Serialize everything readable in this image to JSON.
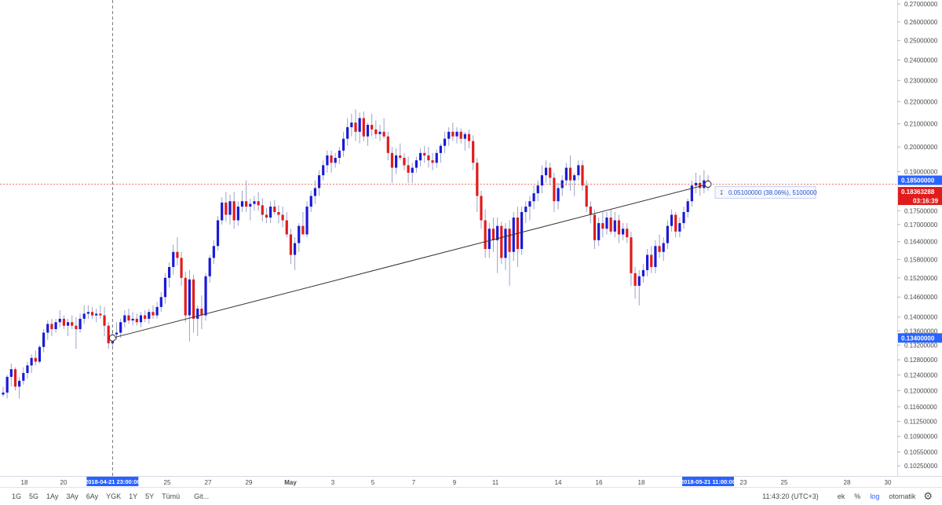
{
  "chart_data": {
    "type": "candlestick",
    "ylim": [
      0.1025,
      0.27
    ],
    "y_scale": "log",
    "y_ticks": [
      "0.27000000",
      "0.26000000",
      "0.25000000",
      "0.24000000",
      "0.23000000",
      "0.22000000",
      "0.21000000",
      "0.20000000",
      "0.19000000",
      "0.17500000",
      "0.17000000",
      "0.16400000",
      "0.15800000",
      "0.15200000",
      "0.14600000",
      "0.14000000",
      "0.13600000",
      "0.13200000",
      "0.12800000",
      "0.12400000",
      "0.12000000",
      "0.11600000",
      "0.11250000",
      "0.10900000",
      "0.10550000",
      "0.10250000"
    ],
    "x_ticks": [
      "18",
      "20",
      "25",
      "27",
      "29",
      "May",
      "3",
      "5",
      "7",
      "9",
      "11",
      "14",
      "16",
      "18",
      "23",
      "25",
      "28",
      "30"
    ],
    "up_color": "#1a1ad6",
    "down_color": "#e01b1b",
    "wick_color": "#9aa3c9",
    "price_line": {
      "value": 0.185,
      "label": "0.18500000",
      "color": "#e74c3c"
    },
    "last_price": {
      "value": 0.18363288,
      "label": "0.18363288",
      "countdown": "03:16:39",
      "color": "#e01b1b"
    },
    "crosshair_price": {
      "value": 0.134,
      "label": "0.13400000"
    },
    "crosshair_time_label": "2018-04-21 23:00:00",
    "trend_line": {
      "from": {
        "time": "2018-04-21 23:00:00",
        "price": 0.134
      },
      "to": {
        "time": "2018-05-21 11:00:00",
        "price": 0.185
      }
    },
    "measure_label": "0.05100000 (38.06%), 5100000",
    "time_label_right": "2018-05-21 11:00:00",
    "candles": [
      [
        0.119,
        0.121,
        0.1185,
        0.1195
      ],
      [
        0.1195,
        0.124,
        0.118,
        0.1235
      ],
      [
        0.1235,
        0.127,
        0.121,
        0.1255
      ],
      [
        0.1255,
        0.126,
        0.12,
        0.121
      ],
      [
        0.121,
        0.1235,
        0.118,
        0.1225
      ],
      [
        0.1225,
        0.126,
        0.1215,
        0.1245
      ],
      [
        0.1245,
        0.1275,
        0.123,
        0.1265
      ],
      [
        0.1265,
        0.1295,
        0.1245,
        0.1285
      ],
      [
        0.1285,
        0.1305,
        0.1265,
        0.1275
      ],
      [
        0.1275,
        0.132,
        0.127,
        0.1315
      ],
      [
        0.1315,
        0.1365,
        0.13,
        0.1355
      ],
      [
        0.1355,
        0.139,
        0.1335,
        0.138
      ],
      [
        0.138,
        0.1395,
        0.1345,
        0.1365
      ],
      [
        0.1365,
        0.1395,
        0.1355,
        0.1385
      ],
      [
        0.1385,
        0.142,
        0.137,
        0.1395
      ],
      [
        0.1395,
        0.1405,
        0.1365,
        0.1375
      ],
      [
        0.1375,
        0.1395,
        0.1345,
        0.1385
      ],
      [
        0.1385,
        0.1405,
        0.1365,
        0.1375
      ],
      [
        0.1375,
        0.14,
        0.131,
        0.1365
      ],
      [
        0.1365,
        0.141,
        0.1355,
        0.1395
      ],
      [
        0.1395,
        0.1435,
        0.138,
        0.141
      ],
      [
        0.141,
        0.1435,
        0.1395,
        0.1415
      ],
      [
        0.1415,
        0.143,
        0.1395,
        0.1405
      ],
      [
        0.1405,
        0.1425,
        0.1385,
        0.141
      ],
      [
        0.141,
        0.1435,
        0.1395,
        0.1405
      ],
      [
        0.1405,
        0.143,
        0.1345,
        0.1375
      ],
      [
        0.1375,
        0.1385,
        0.131,
        0.1325
      ],
      [
        0.1325,
        0.136,
        0.1315,
        0.135
      ],
      [
        0.135,
        0.1385,
        0.1335,
        0.1355
      ],
      [
        0.1355,
        0.1395,
        0.134,
        0.1385
      ],
      [
        0.1385,
        0.142,
        0.137,
        0.1405
      ],
      [
        0.1405,
        0.1425,
        0.138,
        0.139
      ],
      [
        0.139,
        0.1415,
        0.1375,
        0.1395
      ],
      [
        0.1395,
        0.141,
        0.1375,
        0.1385
      ],
      [
        0.1385,
        0.1415,
        0.137,
        0.1405
      ],
      [
        0.1405,
        0.142,
        0.1385,
        0.1395
      ],
      [
        0.1395,
        0.1425,
        0.138,
        0.1415
      ],
      [
        0.1415,
        0.1435,
        0.1395,
        0.1405
      ],
      [
        0.1405,
        0.1445,
        0.1395,
        0.143
      ],
      [
        0.143,
        0.1475,
        0.1415,
        0.146
      ],
      [
        0.146,
        0.1535,
        0.144,
        0.152
      ],
      [
        0.152,
        0.157,
        0.149,
        0.1555
      ],
      [
        0.1555,
        0.163,
        0.153,
        0.1605
      ],
      [
        0.1605,
        0.1655,
        0.156,
        0.1585
      ],
      [
        0.1585,
        0.1605,
        0.1495,
        0.152
      ],
      [
        0.152,
        0.154,
        0.1385,
        0.1405
      ],
      [
        0.1405,
        0.1545,
        0.133,
        0.1515
      ],
      [
        0.1515,
        0.153,
        0.1355,
        0.1395
      ],
      [
        0.1395,
        0.1435,
        0.1345,
        0.1425
      ],
      [
        0.1425,
        0.1465,
        0.1365,
        0.1405
      ],
      [
        0.1405,
        0.1535,
        0.139,
        0.1525
      ],
      [
        0.1525,
        0.1595,
        0.1505,
        0.1585
      ],
      [
        0.1585,
        0.1645,
        0.1565,
        0.1625
      ],
      [
        0.1625,
        0.173,
        0.161,
        0.1715
      ],
      [
        0.1715,
        0.18,
        0.17,
        0.178
      ],
      [
        0.178,
        0.182,
        0.171,
        0.1735
      ],
      [
        0.1735,
        0.181,
        0.17,
        0.1785
      ],
      [
        0.1785,
        0.182,
        0.1685,
        0.1715
      ],
      [
        0.1715,
        0.1785,
        0.1695,
        0.1765
      ],
      [
        0.1765,
        0.1825,
        0.1745,
        0.1785
      ],
      [
        0.1785,
        0.1865,
        0.1745,
        0.1765
      ],
      [
        0.1765,
        0.1795,
        0.1715,
        0.1775
      ],
      [
        0.1775,
        0.1805,
        0.175,
        0.1785
      ],
      [
        0.1785,
        0.182,
        0.175,
        0.177
      ],
      [
        0.177,
        0.1795,
        0.171,
        0.1735
      ],
      [
        0.1735,
        0.176,
        0.1705,
        0.1725
      ],
      [
        0.1725,
        0.1785,
        0.1705,
        0.1765
      ],
      [
        0.1765,
        0.179,
        0.1735,
        0.1745
      ],
      [
        0.1745,
        0.177,
        0.1705,
        0.1735
      ],
      [
        0.1735,
        0.1765,
        0.169,
        0.1715
      ],
      [
        0.1715,
        0.1745,
        0.1655,
        0.1665
      ],
      [
        0.1665,
        0.1685,
        0.1565,
        0.1595
      ],
      [
        0.1595,
        0.1655,
        0.1545,
        0.1635
      ],
      [
        0.1635,
        0.1705,
        0.1605,
        0.1695
      ],
      [
        0.1695,
        0.1745,
        0.1665,
        0.1665
      ],
      [
        0.1665,
        0.1785,
        0.1655,
        0.1765
      ],
      [
        0.1765,
        0.1825,
        0.1745,
        0.1805
      ],
      [
        0.1805,
        0.1865,
        0.1775,
        0.1835
      ],
      [
        0.1835,
        0.1905,
        0.1805,
        0.1885
      ],
      [
        0.1885,
        0.1945,
        0.1865,
        0.1925
      ],
      [
        0.1925,
        0.1985,
        0.1895,
        0.1965
      ],
      [
        0.1965,
        0.1985,
        0.1895,
        0.1935
      ],
      [
        0.1935,
        0.1975,
        0.1915,
        0.1955
      ],
      [
        0.1955,
        0.2,
        0.193,
        0.1985
      ],
      [
        0.1985,
        0.2065,
        0.196,
        0.2035
      ],
      [
        0.2035,
        0.2125,
        0.2005,
        0.2085
      ],
      [
        0.2085,
        0.2145,
        0.2045,
        0.2105
      ],
      [
        0.2105,
        0.2165,
        0.2025,
        0.2065
      ],
      [
        0.2065,
        0.215,
        0.2015,
        0.2125
      ],
      [
        0.2125,
        0.2155,
        0.2025,
        0.2045
      ],
      [
        0.2045,
        0.2105,
        0.2005,
        0.2095
      ],
      [
        0.2095,
        0.2145,
        0.2045,
        0.2075
      ],
      [
        0.2075,
        0.2115,
        0.2035,
        0.2055
      ],
      [
        0.2055,
        0.2095,
        0.2025,
        0.2065
      ],
      [
        0.2065,
        0.2125,
        0.2035,
        0.2045
      ],
      [
        0.2045,
        0.2065,
        0.1945,
        0.1975
      ],
      [
        0.1975,
        0.2,
        0.1855,
        0.1915
      ],
      [
        0.1915,
        0.1995,
        0.189,
        0.1965
      ],
      [
        0.1965,
        0.2015,
        0.1945,
        0.1955
      ],
      [
        0.1955,
        0.1975,
        0.1905,
        0.1925
      ],
      [
        0.1925,
        0.196,
        0.1855,
        0.1895
      ],
      [
        0.1895,
        0.1935,
        0.1855,
        0.1915
      ],
      [
        0.1915,
        0.196,
        0.1895,
        0.1945
      ],
      [
        0.1945,
        0.1995,
        0.192,
        0.1975
      ],
      [
        0.1975,
        0.2005,
        0.1935,
        0.1965
      ],
      [
        0.1965,
        0.2,
        0.1915,
        0.1945
      ],
      [
        0.1945,
        0.1975,
        0.1905,
        0.1935
      ],
      [
        0.1935,
        0.199,
        0.1915,
        0.1975
      ],
      [
        0.1975,
        0.2015,
        0.1935,
        0.2005
      ],
      [
        0.2005,
        0.2065,
        0.1975,
        0.2035
      ],
      [
        0.2035,
        0.2085,
        0.2005,
        0.2065
      ],
      [
        0.2065,
        0.2105,
        0.2025,
        0.2045
      ],
      [
        0.2045,
        0.2085,
        0.2015,
        0.2065
      ],
      [
        0.2065,
        0.208,
        0.2015,
        0.2035
      ],
      [
        0.2035,
        0.2065,
        0.1985,
        0.2055
      ],
      [
        0.2055,
        0.2075,
        0.1995,
        0.2025
      ],
      [
        0.2025,
        0.205,
        0.1905,
        0.1935
      ],
      [
        0.1935,
        0.1955,
        0.1745,
        0.1805
      ],
      [
        0.1805,
        0.1825,
        0.1685,
        0.1715
      ],
      [
        0.1715,
        0.1755,
        0.1585,
        0.1615
      ],
      [
        0.1615,
        0.1705,
        0.1585,
        0.1685
      ],
      [
        0.1685,
        0.1725,
        0.1605,
        0.1645
      ],
      [
        0.1645,
        0.1725,
        0.1535,
        0.1695
      ],
      [
        0.1695,
        0.171,
        0.1565,
        0.1585
      ],
      [
        0.1585,
        0.1705,
        0.1545,
        0.1685
      ],
      [
        0.1685,
        0.1715,
        0.1495,
        0.1605
      ],
      [
        0.1605,
        0.1745,
        0.1575,
        0.1725
      ],
      [
        0.1725,
        0.1765,
        0.1555,
        0.1615
      ],
      [
        0.1615,
        0.1765,
        0.1595,
        0.1745
      ],
      [
        0.1745,
        0.1785,
        0.1705,
        0.1765
      ],
      [
        0.1765,
        0.1805,
        0.1715,
        0.1785
      ],
      [
        0.1785,
        0.1845,
        0.1755,
        0.1815
      ],
      [
        0.1815,
        0.1865,
        0.1785,
        0.1845
      ],
      [
        0.1845,
        0.1925,
        0.1815,
        0.1885
      ],
      [
        0.1885,
        0.1945,
        0.1855,
        0.1915
      ],
      [
        0.1915,
        0.1935,
        0.1845,
        0.1875
      ],
      [
        0.1875,
        0.1895,
        0.1745,
        0.1785
      ],
      [
        0.1785,
        0.1855,
        0.1755,
        0.1835
      ],
      [
        0.1835,
        0.1885,
        0.1805,
        0.1865
      ],
      [
        0.1865,
        0.1935,
        0.1845,
        0.1915
      ],
      [
        0.1915,
        0.1965,
        0.1825,
        0.1865
      ],
      [
        0.1865,
        0.1895,
        0.1805,
        0.1885
      ],
      [
        0.1885,
        0.1945,
        0.1865,
        0.1925
      ],
      [
        0.1925,
        0.1945,
        0.1825,
        0.1845
      ],
      [
        0.1845,
        0.1865,
        0.1745,
        0.1765
      ],
      [
        0.1765,
        0.1785,
        0.1705,
        0.1735
      ],
      [
        0.1735,
        0.1755,
        0.1615,
        0.1645
      ],
      [
        0.1645,
        0.1725,
        0.1625,
        0.1705
      ],
      [
        0.1705,
        0.1745,
        0.1655,
        0.1685
      ],
      [
        0.1685,
        0.1745,
        0.1665,
        0.1725
      ],
      [
        0.1725,
        0.1755,
        0.1665,
        0.1675
      ],
      [
        0.1675,
        0.1745,
        0.1655,
        0.1715
      ],
      [
        0.1715,
        0.1735,
        0.1635,
        0.1665
      ],
      [
        0.1665,
        0.1705,
        0.1645,
        0.1685
      ],
      [
        0.1685,
        0.1705,
        0.1635,
        0.1655
      ],
      [
        0.1655,
        0.1675,
        0.1495,
        0.1535
      ],
      [
        0.1535,
        0.1555,
        0.1455,
        0.1495
      ],
      [
        0.1495,
        0.1545,
        0.1435,
        0.1525
      ],
      [
        0.1525,
        0.1565,
        0.1505,
        0.1545
      ],
      [
        0.1545,
        0.1615,
        0.1525,
        0.1595
      ],
      [
        0.1595,
        0.1625,
        0.1535,
        0.1555
      ],
      [
        0.1555,
        0.1645,
        0.1535,
        0.1625
      ],
      [
        0.1625,
        0.1665,
        0.1585,
        0.1605
      ],
      [
        0.1605,
        0.1655,
        0.1575,
        0.1635
      ],
      [
        0.1635,
        0.1715,
        0.1615,
        0.1695
      ],
      [
        0.1695,
        0.1755,
        0.1675,
        0.1735
      ],
      [
        0.1735,
        0.1745,
        0.1655,
        0.1675
      ],
      [
        0.1675,
        0.1725,
        0.1655,
        0.1705
      ],
      [
        0.1705,
        0.1765,
        0.1685,
        0.1745
      ],
      [
        0.1745,
        0.1795,
        0.1725,
        0.1785
      ],
      [
        0.1785,
        0.1865,
        0.1765,
        0.1845
      ],
      [
        0.1845,
        0.1895,
        0.1815,
        0.1855
      ],
      [
        0.1855,
        0.1885,
        0.1805,
        0.1835
      ],
      [
        0.1835,
        0.1905,
        0.1815,
        0.1865
      ],
      [
        0.1865,
        0.1885,
        0.1825,
        0.18363288
      ]
    ]
  },
  "bottom_bar": {
    "ranges": [
      "1G",
      "5G",
      "1Ay",
      "3Ay",
      "6Ay",
      "YGK",
      "1Y",
      "5Y",
      "Tümü",
      "Git..."
    ],
    "clock": "11:43:20 (UTC+3)",
    "tool_ek": "ek",
    "tool_percent": "%",
    "tool_log": "log",
    "tool_auto": "otomatik",
    "settings_icon": "gear-icon"
  }
}
